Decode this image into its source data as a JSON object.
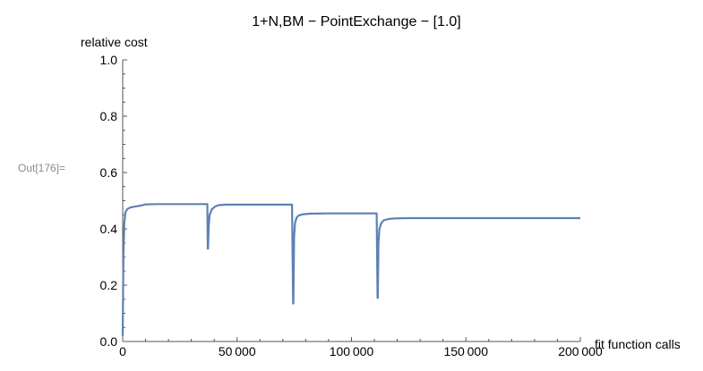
{
  "cell": {
    "out_label": "Out[176]="
  },
  "chart_data": {
    "type": "line",
    "title": "1+N,BM − PointExchange − [1.0]",
    "xlabel": "fit function calls",
    "ylabel": "relative cost",
    "xlim": [
      0,
      200000
    ],
    "ylim": [
      0,
      1.0
    ],
    "x_ticks": [
      0,
      50000,
      100000,
      150000,
      200000
    ],
    "x_tick_labels": [
      "0",
      "50 000",
      "100 000",
      "150 000",
      "200 000"
    ],
    "y_ticks": [
      0,
      0.2,
      0.4,
      0.6,
      0.8,
      1.0
    ],
    "y_tick_labels": [
      "0.0",
      "0.2",
      "0.4",
      "0.6",
      "0.8",
      "1.0"
    ],
    "grid": false,
    "legend": "none",
    "series_color": "#5e81b5",
    "series": [
      {
        "x": [
          0,
          300,
          700,
          1200,
          2000,
          3000,
          4500,
          6000,
          8000,
          10000,
          15000,
          25000,
          37000,
          37200,
          37300,
          37600,
          38000,
          39000,
          40500,
          42000,
          45000,
          60000,
          74000,
          74500,
          74600,
          74900,
          75300,
          76000,
          77000,
          79000,
          82000,
          90000,
          111000,
          111400,
          111500,
          111800,
          112200,
          113000,
          114000,
          116000,
          119000,
          125000,
          150000,
          200000
        ],
        "y": [
          0.02,
          0.3,
          0.42,
          0.46,
          0.47,
          0.475,
          0.478,
          0.48,
          0.483,
          0.487,
          0.488,
          0.488,
          0.488,
          0.33,
          0.33,
          0.41,
          0.45,
          0.47,
          0.48,
          0.484,
          0.486,
          0.486,
          0.486,
          0.135,
          0.135,
          0.37,
          0.42,
          0.44,
          0.448,
          0.452,
          0.454,
          0.455,
          0.455,
          0.155,
          0.155,
          0.35,
          0.4,
          0.42,
          0.43,
          0.435,
          0.437,
          0.438,
          0.438,
          0.438
        ]
      }
    ]
  }
}
